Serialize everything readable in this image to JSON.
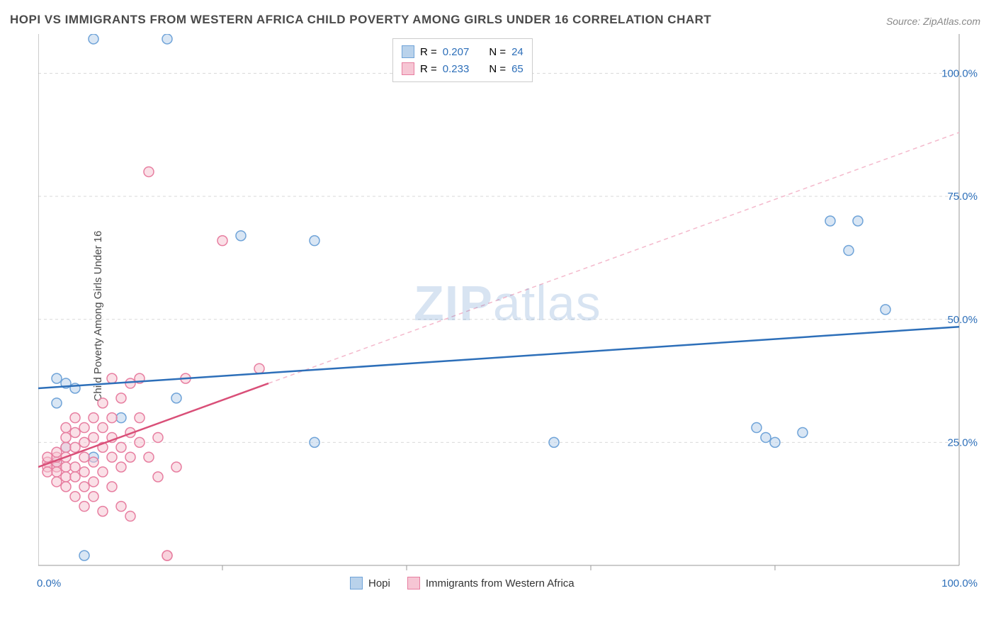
{
  "title": "HOPI VS IMMIGRANTS FROM WESTERN AFRICA CHILD POVERTY AMONG GIRLS UNDER 16 CORRELATION CHART",
  "source": "Source: ZipAtlas.com",
  "ylabel": "Child Poverty Among Girls Under 16",
  "watermark": {
    "bold": "ZIP",
    "rest": "atlas"
  },
  "chart": {
    "type": "scatter",
    "xlim": [
      0,
      100
    ],
    "ylim": [
      0,
      108
    ],
    "x_ticks": [
      0,
      100
    ],
    "x_tick_labels": [
      "0.0%",
      "100.0%"
    ],
    "y_grid": [
      25,
      50,
      75,
      100
    ],
    "y_tick_labels": [
      "25.0%",
      "50.0%",
      "75.0%",
      "100.0%"
    ],
    "x_minor_ticks": [
      20,
      40,
      60,
      80
    ],
    "background_color": "#ffffff",
    "grid_color": "#d9d9d9",
    "grid_dash": "4,4",
    "axis_color": "#9a9a9a",
    "label_color": "#2d6fb9",
    "marker_radius": 7,
    "marker_stroke_width": 1.5,
    "series": [
      {
        "name": "Hopi",
        "color_fill": "#b9d2eb",
        "color_stroke": "#6fa3d8",
        "fill_opacity": 0.55,
        "points": [
          [
            6,
            107
          ],
          [
            14,
            107
          ],
          [
            2,
            38
          ],
          [
            3,
            37
          ],
          [
            2,
            33
          ],
          [
            4,
            36
          ],
          [
            3,
            24
          ],
          [
            6,
            22
          ],
          [
            9,
            30
          ],
          [
            15,
            34
          ],
          [
            22,
            67
          ],
          [
            30,
            66
          ],
          [
            30,
            25
          ],
          [
            56,
            25
          ],
          [
            78,
            28
          ],
          [
            79,
            26
          ],
          [
            80,
            25
          ],
          [
            83,
            27
          ],
          [
            86,
            70
          ],
          [
            89,
            70
          ],
          [
            88,
            64
          ],
          [
            92,
            52
          ],
          [
            5,
            2
          ],
          [
            2,
            21
          ]
        ],
        "trend": {
          "x1": 0,
          "y1": 36,
          "x2": 100,
          "y2": 48.5
        },
        "trend_color": "#2d6fb9",
        "trend_width": 2.5,
        "r": "0.207",
        "n": "24"
      },
      {
        "name": "Immigrants from Western Africa",
        "color_fill": "#f6c6d4",
        "color_stroke": "#e77ea0",
        "fill_opacity": 0.55,
        "points": [
          [
            1,
            21
          ],
          [
            1,
            20
          ],
          [
            1,
            19
          ],
          [
            1,
            22
          ],
          [
            2,
            20
          ],
          [
            2,
            21
          ],
          [
            2,
            22
          ],
          [
            2,
            19
          ],
          [
            2,
            23
          ],
          [
            2,
            17
          ],
          [
            3,
            24
          ],
          [
            3,
            22
          ],
          [
            3,
            20
          ],
          [
            3,
            18
          ],
          [
            3,
            26
          ],
          [
            3,
            28
          ],
          [
            3,
            16
          ],
          [
            4,
            20
          ],
          [
            4,
            18
          ],
          [
            4,
            24
          ],
          [
            4,
            27
          ],
          [
            4,
            30
          ],
          [
            4,
            14
          ],
          [
            5,
            22
          ],
          [
            5,
            25
          ],
          [
            5,
            19
          ],
          [
            5,
            28
          ],
          [
            5,
            16
          ],
          [
            5,
            12
          ],
          [
            6,
            26
          ],
          [
            6,
            21
          ],
          [
            6,
            30
          ],
          [
            6,
            17
          ],
          [
            6,
            14
          ],
          [
            7,
            24
          ],
          [
            7,
            28
          ],
          [
            7,
            19
          ],
          [
            7,
            33
          ],
          [
            7,
            11
          ],
          [
            8,
            26
          ],
          [
            8,
            22
          ],
          [
            8,
            30
          ],
          [
            8,
            16
          ],
          [
            8,
            38
          ],
          [
            9,
            24
          ],
          [
            9,
            20
          ],
          [
            9,
            34
          ],
          [
            9,
            12
          ],
          [
            10,
            27
          ],
          [
            10,
            22
          ],
          [
            10,
            37
          ],
          [
            10,
            10
          ],
          [
            11,
            25
          ],
          [
            11,
            30
          ],
          [
            11,
            38
          ],
          [
            12,
            22
          ],
          [
            12,
            80
          ],
          [
            13,
            26
          ],
          [
            13,
            18
          ],
          [
            14,
            2
          ],
          [
            14,
            2
          ],
          [
            15,
            20
          ],
          [
            16,
            38
          ],
          [
            20,
            66
          ],
          [
            24,
            40
          ]
        ],
        "trend_solid": {
          "x1": 0,
          "y1": 20,
          "x2": 25,
          "y2": 37
        },
        "trend_dashed": {
          "x1": 25,
          "y1": 37,
          "x2": 100,
          "y2": 88
        },
        "trend_color": "#d94f78",
        "trend_color_dashed": "#f4b9cc",
        "trend_width": 2.5,
        "trend_dash": "6,5",
        "r": "0.233",
        "n": "65"
      }
    ]
  },
  "legend_top": {
    "r_label": "R =",
    "n_label": "N ="
  },
  "legend_bottom": {
    "items": [
      "Hopi",
      "Immigrants from Western Africa"
    ]
  }
}
